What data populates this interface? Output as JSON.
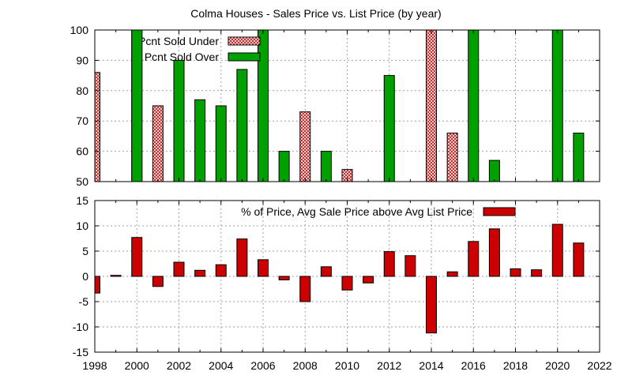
{
  "chart_data": [
    {
      "type": "bar",
      "title": "Colma Houses - Sales Price vs. List Price (by year)",
      "xlim": [
        1998,
        2022
      ],
      "ylim": [
        50,
        100
      ],
      "yticks": [
        50,
        60,
        70,
        80,
        90,
        100
      ],
      "grid": true,
      "legend_position": "top-left",
      "series": [
        {
          "name": "Pcnt Sold Under",
          "color": "#cc0000",
          "fill": "crosshatch",
          "x": [
            1998,
            2001,
            2008,
            2010,
            2014,
            2015
          ],
          "values": [
            86,
            75,
            73,
            54,
            100,
            66
          ]
        },
        {
          "name": "Pcnt Sold Over",
          "color": "#00a000",
          "fill": "solid",
          "x": [
            2000,
            2002,
            2003,
            2004,
            2005,
            2006,
            2007,
            2009,
            2012,
            2016,
            2017,
            2020,
            2021
          ],
          "values": [
            100,
            90,
            77,
            75,
            87,
            100,
            60,
            60,
            85,
            100,
            57,
            100,
            66
          ]
        }
      ]
    },
    {
      "type": "bar",
      "xlim": [
        1998,
        2022
      ],
      "ylim": [
        -15,
        15
      ],
      "yticks": [
        -15,
        -10,
        -5,
        0,
        5,
        10,
        15
      ],
      "xticks": [
        1998,
        2000,
        2002,
        2004,
        2006,
        2008,
        2010,
        2012,
        2014,
        2016,
        2018,
        2020,
        2022
      ],
      "grid": true,
      "legend_position": "top-center",
      "series": [
        {
          "name": "% of Price, Avg Sale Price above Avg List Price",
          "color": "#cc0000",
          "fill": "solid",
          "x": [
            1998,
            1999,
            2000,
            2001,
            2002,
            2003,
            2004,
            2005,
            2006,
            2007,
            2008,
            2009,
            2010,
            2011,
            2012,
            2013,
            2014,
            2015,
            2016,
            2017,
            2018,
            2019,
            2020,
            2021
          ],
          "values": [
            -3.3,
            0.2,
            7.7,
            -2,
            2.8,
            1.2,
            2.3,
            7.4,
            3.3,
            -0.7,
            -5,
            1.9,
            -2.7,
            -1.3,
            4.9,
            4.1,
            -11.2,
            0.9,
            6.9,
            9.4,
            1.5,
            1.3,
            10.3,
            6.6
          ]
        }
      ]
    }
  ]
}
